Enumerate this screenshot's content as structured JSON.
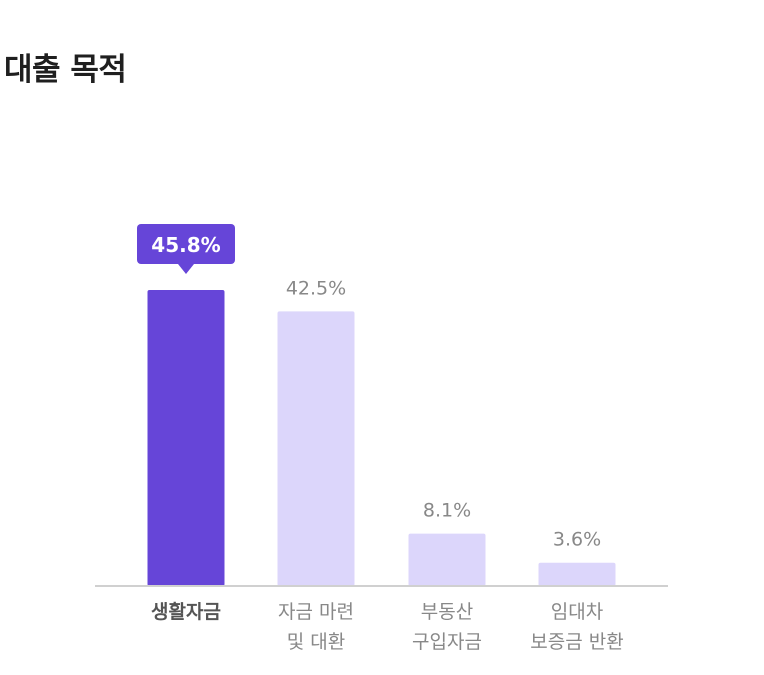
{
  "title": "대출 목적",
  "colors": {
    "highlight": "#6645d8",
    "bar": "#dcd6fb",
    "axis": "#d0d0d0",
    "label": "#888888",
    "highlight_label": "#555555"
  },
  "chart_data": {
    "type": "bar",
    "categories": [
      [
        "생활자금"
      ],
      [
        "자금 마련",
        "및 대환"
      ],
      [
        "부동산",
        "구입자금"
      ],
      [
        "임대차",
        "보증금 반환"
      ]
    ],
    "values": [
      45.8,
      42.5,
      8.1,
      3.6
    ],
    "value_labels": [
      "45.8%",
      "42.5%",
      "8.1%",
      "3.6%"
    ],
    "highlight_index": 0,
    "ylim": [
      0,
      45.8
    ],
    "grid": false,
    "legend": "none",
    "xlabel": "",
    "ylabel": ""
  }
}
